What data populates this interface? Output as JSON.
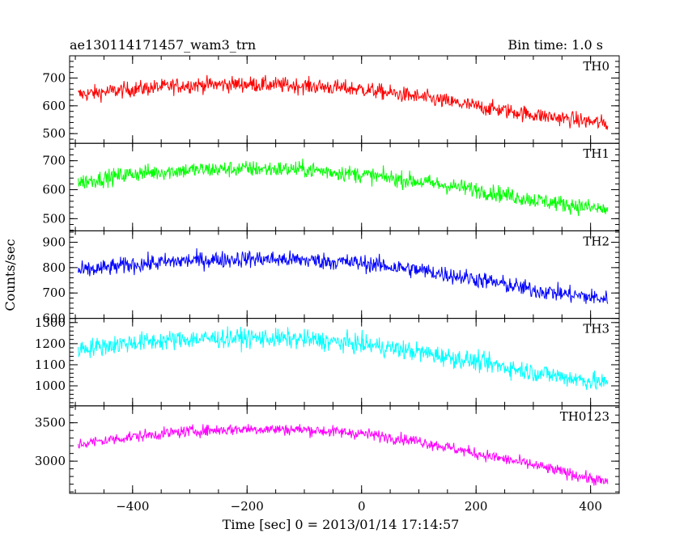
{
  "header": {
    "title": "ae130114171457_wam3_trn",
    "bin_time": "Bin time: 1.0 s"
  },
  "chart_data": {
    "type": "line",
    "xlabel": "Time [sec] 0 = 2013/01/14 17:14:57",
    "ylabel": "Counts/sec",
    "xlim": [
      -510,
      450
    ],
    "x_range": [
      -495,
      430
    ],
    "x_ticks": [
      -400,
      -200,
      0,
      200,
      400
    ],
    "x_tick_labels": [
      "−400",
      "−200",
      "0",
      "200",
      "400"
    ],
    "grid": false,
    "panels": [
      {
        "name": "TH0",
        "color": "#ff0000",
        "ylim": [
          465,
          780
        ],
        "y_ticks": [
          500,
          600,
          700
        ],
        "y_tick_labels": [
          "500",
          "600",
          "700"
        ],
        "trend": [
          [
            -495,
            640
          ],
          [
            -400,
            660
          ],
          [
            -300,
            675
          ],
          [
            -200,
            678
          ],
          [
            -100,
            672
          ],
          [
            0,
            660
          ],
          [
            100,
            632
          ],
          [
            200,
            598
          ],
          [
            300,
            568
          ],
          [
            430,
            535
          ]
        ],
        "noise": 28
      },
      {
        "name": "TH1",
        "color": "#00ff00",
        "ylim": [
          458,
          760
        ],
        "y_ticks": [
          500,
          600,
          700
        ],
        "y_tick_labels": [
          "500",
          "600",
          "700"
        ],
        "trend": [
          [
            -495,
            625
          ],
          [
            -400,
            655
          ],
          [
            -300,
            668
          ],
          [
            -200,
            672
          ],
          [
            -100,
            670
          ],
          [
            0,
            652
          ],
          [
            100,
            628
          ],
          [
            200,
            600
          ],
          [
            300,
            565
          ],
          [
            430,
            530
          ]
        ],
        "noise": 28
      },
      {
        "name": "TH2",
        "color": "#0000ff",
        "ylim": [
          600,
          945
        ],
        "y_ticks": [
          600,
          700,
          800,
          900
        ],
        "y_tick_labels": [
          "600",
          "700",
          "800",
          "900"
        ],
        "trend": [
          [
            -495,
            785
          ],
          [
            -400,
            812
          ],
          [
            -300,
            828
          ],
          [
            -200,
            835
          ],
          [
            -100,
            830
          ],
          [
            0,
            818
          ],
          [
            100,
            790
          ],
          [
            200,
            755
          ],
          [
            300,
            712
          ],
          [
            430,
            675
          ]
        ],
        "noise": 33
      },
      {
        "name": "TH3",
        "color": "#00ffff",
        "ylim": [
          905,
          1320
        ],
        "y_ticks": [
          1000,
          1100,
          1200,
          1300
        ],
        "y_tick_labels": [
          "1000",
          "1100",
          "1200",
          "1300"
        ],
        "trend": [
          [
            -495,
            1175
          ],
          [
            -400,
            1205
          ],
          [
            -300,
            1222
          ],
          [
            -200,
            1228
          ],
          [
            -100,
            1220
          ],
          [
            0,
            1198
          ],
          [
            100,
            1160
          ],
          [
            200,
            1115
          ],
          [
            300,
            1065
          ],
          [
            430,
            1010
          ]
        ],
        "noise": 45
      },
      {
        "name": "TH0123",
        "color": "#ff00ff",
        "ylim": [
          2580,
          3720
        ],
        "y_ticks": [
          3000,
          3500
        ],
        "y_tick_labels": [
          "3000",
          "3500"
        ],
        "trend": [
          [
            -495,
            3220
          ],
          [
            -400,
            3320
          ],
          [
            -300,
            3390
          ],
          [
            -200,
            3420
          ],
          [
            -100,
            3410
          ],
          [
            0,
            3360
          ],
          [
            100,
            3260
          ],
          [
            200,
            3100
          ],
          [
            300,
            2950
          ],
          [
            430,
            2720
          ]
        ],
        "noise": 75
      }
    ]
  }
}
